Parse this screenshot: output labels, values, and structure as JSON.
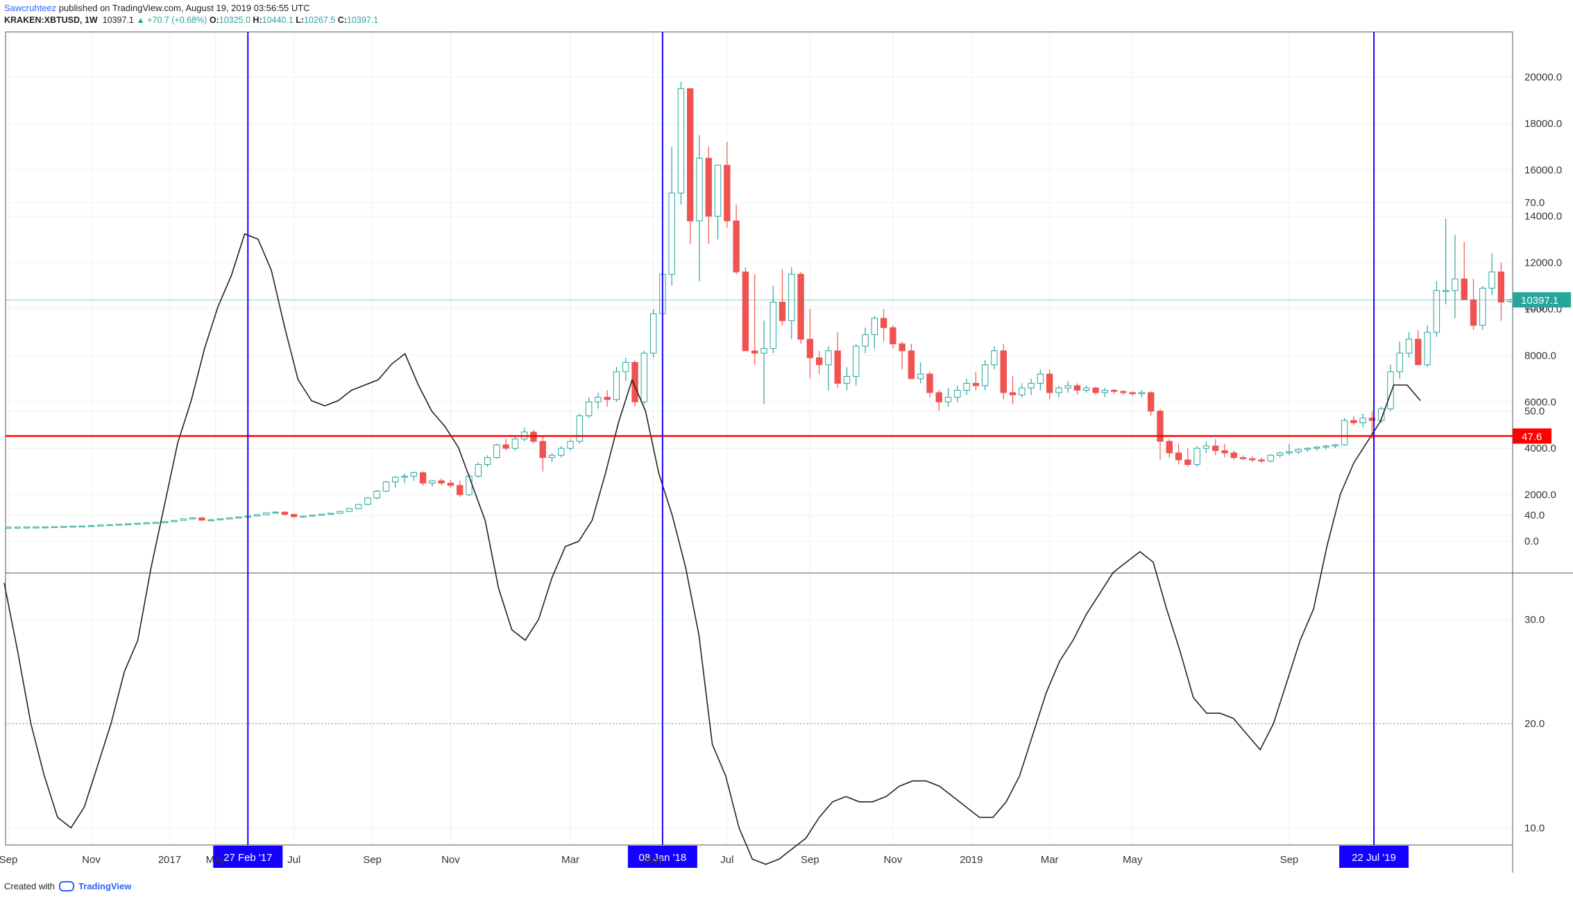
{
  "header": {
    "author": "Sawcruhteez",
    "publish_text": "published on TradingView.com, August 19, 2019 03:56:55 UTC",
    "symbol": "KRAKEN:XBTUSD, 1W",
    "last": "10397.1",
    "change": "▲ +70.7 (+0.68%)",
    "o_label": "O:",
    "o_value": "10325.0",
    "h_label": "H:",
    "h_value": "10440.1",
    "l_label": "L:",
    "l_value": "10267.5",
    "c_label": "C:",
    "c_value": "10397.1"
  },
  "footer": {
    "created_with": "Created with",
    "brand": "TradingView"
  },
  "colors": {
    "up": "#26a69a",
    "up_fill": "#ffffff",
    "down": "#ef5350",
    "marker": "#1400ff",
    "level": "#ff0000",
    "price_line": "#26a69a"
  },
  "chart_data": [
    {
      "type": "candlestick",
      "y_ticks": [
        "20000.0",
        "18000.0",
        "16000.0",
        "14000.0",
        "12000.0",
        "10000.0",
        "8000.0",
        "6000.0",
        "4000.0",
        "2000.0",
        "0.0"
      ],
      "last_price_label": "10397.1",
      "x_ticks": [
        "Sep",
        "Nov",
        "2017",
        "May",
        "Jul",
        "Sep",
        "Nov",
        "Mar",
        "May",
        "Jul",
        "Sep",
        "Nov",
        "2019",
        "Mar",
        "May",
        "Sep"
      ],
      "marker_labels": [
        "27 Feb '17",
        "08 Jan '18",
        "22 Jul '19"
      ],
      "ylim": [
        0,
        21000
      ],
      "candles_ohlc": [
        [
          600,
          605,
          590,
          600
        ],
        [
          600,
          606,
          592,
          604
        ],
        [
          604,
          612,
          598,
          608
        ],
        [
          608,
          615,
          602,
          610
        ],
        [
          610,
          620,
          605,
          615
        ],
        [
          615,
          630,
          610,
          625
        ],
        [
          625,
          640,
          620,
          635
        ],
        [
          635,
          650,
          628,
          645
        ],
        [
          645,
          660,
          640,
          655
        ],
        [
          655,
          680,
          650,
          670
        ],
        [
          670,
          700,
          660,
          695
        ],
        [
          695,
          720,
          685,
          710
        ],
        [
          710,
          740,
          700,
          730
        ],
        [
          730,
          760,
          720,
          750
        ],
        [
          750,
          780,
          740,
          770
        ],
        [
          770,
          800,
          760,
          790
        ],
        [
          790,
          820,
          780,
          810
        ],
        [
          810,
          850,
          800,
          840
        ],
        [
          840,
          900,
          830,
          890
        ],
        [
          890,
          980,
          880,
          960
        ],
        [
          960,
          1020,
          940,
          1000
        ],
        [
          1000,
          1050,
          950,
          900
        ],
        [
          900,
          960,
          880,
          920
        ],
        [
          920,
          980,
          900,
          960
        ],
        [
          960,
          1020,
          940,
          1000
        ],
        [
          1000,
          1060,
          980,
          1040
        ],
        [
          1040,
          1100,
          1020,
          1080
        ],
        [
          1080,
          1160,
          1060,
          1140
        ],
        [
          1140,
          1240,
          1120,
          1220
        ],
        [
          1220,
          1290,
          1180,
          1250
        ],
        [
          1250,
          1280,
          1100,
          1150
        ],
        [
          1150,
          1180,
          1000,
          1050
        ],
        [
          1050,
          1100,
          1000,
          1080
        ],
        [
          1080,
          1140,
          1060,
          1120
        ],
        [
          1120,
          1180,
          1100,
          1160
        ],
        [
          1160,
          1220,
          1140,
          1200
        ],
        [
          1200,
          1300,
          1180,
          1280
        ],
        [
          1280,
          1420,
          1260,
          1400
        ],
        [
          1400,
          1600,
          1380,
          1580
        ],
        [
          1580,
          1900,
          1550,
          1860
        ],
        [
          1860,
          2200,
          1800,
          2150
        ],
        [
          2150,
          2600,
          2100,
          2550
        ],
        [
          2550,
          2800,
          2300,
          2750
        ],
        [
          2750,
          2900,
          2500,
          2800
        ],
        [
          2800,
          3000,
          2600,
          2950
        ],
        [
          2950,
          3000,
          2400,
          2500
        ],
        [
          2500,
          2650,
          2350,
          2600
        ],
        [
          2600,
          2700,
          2400,
          2500
        ],
        [
          2500,
          2650,
          2300,
          2400
        ],
        [
          2400,
          2600,
          1900,
          2000
        ],
        [
          2000,
          2900,
          1950,
          2800
        ],
        [
          2800,
          3400,
          2750,
          3300
        ],
        [
          3300,
          3700,
          3200,
          3600
        ],
        [
          3600,
          4200,
          3550,
          4150
        ],
        [
          4150,
          4400,
          3900,
          4000
        ],
        [
          4000,
          4500,
          3900,
          4400
        ],
        [
          4400,
          4900,
          4300,
          4700
        ],
        [
          4700,
          4800,
          4200,
          4300
        ],
        [
          4300,
          4500,
          3000,
          3600
        ],
        [
          3600,
          3800,
          3400,
          3700
        ],
        [
          3700,
          4100,
          3600,
          4000
        ],
        [
          4000,
          4400,
          3900,
          4300
        ],
        [
          4300,
          5500,
          4200,
          5400
        ],
        [
          5400,
          6200,
          5300,
          6000
        ],
        [
          6000,
          6400,
          5700,
          6200
        ],
        [
          6200,
          6500,
          5800,
          6100
        ],
        [
          6100,
          7500,
          6000,
          7300
        ],
        [
          7300,
          7900,
          6900,
          7700
        ],
        [
          7700,
          7800,
          5800,
          6000
        ],
        [
          6000,
          8200,
          5900,
          8100
        ],
        [
          8100,
          10000,
          7900,
          9800
        ],
        [
          9800,
          11800,
          9500,
          11500
        ],
        [
          11500,
          17000,
          11000,
          15000
        ],
        [
          15000,
          19800,
          14500,
          19500
        ],
        [
          19500,
          19000,
          12800,
          13800
        ],
        [
          13800,
          17500,
          11200,
          16500
        ],
        [
          16500,
          17000,
          12800,
          14000
        ],
        [
          14000,
          16200,
          13000,
          16200
        ],
        [
          16200,
          17200,
          13500,
          13800
        ],
        [
          13800,
          14500,
          11500,
          11600
        ],
        [
          11600,
          11800,
          9000,
          8200
        ],
        [
          8200,
          11500,
          7600,
          8100
        ],
        [
          8100,
          9500,
          5900,
          8300
        ],
        [
          8300,
          11000,
          8100,
          10300
        ],
        [
          10300,
          11700,
          9300,
          9500
        ],
        [
          9500,
          11800,
          8700,
          11500
        ],
        [
          11500,
          11600,
          8500,
          8700
        ],
        [
          8700,
          10000,
          7000,
          7900
        ],
        [
          7900,
          8200,
          7200,
          7600
        ],
        [
          7600,
          8400,
          6500,
          8200
        ],
        [
          8200,
          9000,
          6600,
          6800
        ],
        [
          6800,
          7500,
          6500,
          7100
        ],
        [
          7100,
          8500,
          6700,
          8400
        ],
        [
          8400,
          9200,
          8100,
          8900
        ],
        [
          8900,
          9700,
          8300,
          9600
        ],
        [
          9600,
          10000,
          8600,
          9200
        ],
        [
          9200,
          9300,
          8300,
          8500
        ],
        [
          8500,
          8600,
          7400,
          8200
        ],
        [
          8200,
          8500,
          7000,
          7000
        ],
        [
          7000,
          7700,
          6800,
          7200
        ],
        [
          7200,
          7300,
          6200,
          6400
        ],
        [
          6400,
          6500,
          5600,
          6000
        ],
        [
          6000,
          6600,
          5800,
          6200
        ],
        [
          6200,
          6700,
          6000,
          6500
        ],
        [
          6500,
          7000,
          6300,
          6800
        ],
        [
          6800,
          7300,
          6500,
          6700
        ],
        [
          6700,
          7800,
          6500,
          7600
        ],
        [
          7600,
          8400,
          7400,
          8200
        ],
        [
          8200,
          8500,
          6100,
          6400
        ],
        [
          6400,
          7100,
          5900,
          6300
        ],
        [
          6300,
          6800,
          6200,
          6600
        ],
        [
          6600,
          7000,
          6300,
          6800
        ],
        [
          6800,
          7400,
          6500,
          7200
        ],
        [
          7200,
          7400,
          6100,
          6400
        ],
        [
          6400,
          6700,
          6200,
          6600
        ],
        [
          6600,
          6900,
          6400,
          6700
        ],
        [
          6700,
          6800,
          6300,
          6500
        ],
        [
          6500,
          6700,
          6400,
          6600
        ],
        [
          6600,
          6650,
          6300,
          6400
        ],
        [
          6400,
          6600,
          6200,
          6500
        ],
        [
          6500,
          6550,
          6350,
          6450
        ],
        [
          6450,
          6500,
          6300,
          6400
        ],
        [
          6400,
          6450,
          6250,
          6350
        ],
        [
          6350,
          6500,
          6200,
          6400
        ],
        [
          6400,
          6450,
          5400,
          5600
        ],
        [
          5600,
          5700,
          3500,
          4300
        ],
        [
          4300,
          4400,
          3600,
          3800
        ],
        [
          3800,
          4200,
          3300,
          3500
        ],
        [
          3500,
          4000,
          3200,
          3300
        ],
        [
          3300,
          4100,
          3200,
          4000
        ],
        [
          4000,
          4300,
          3800,
          4100
        ],
        [
          4100,
          4400,
          3700,
          3900
        ],
        [
          3900,
          4200,
          3600,
          3800
        ],
        [
          3800,
          3900,
          3500,
          3600
        ],
        [
          3600,
          3700,
          3500,
          3550
        ],
        [
          3550,
          3650,
          3400,
          3500
        ],
        [
          3500,
          3600,
          3350,
          3450
        ],
        [
          3450,
          3750,
          3400,
          3700
        ],
        [
          3700,
          3850,
          3600,
          3800
        ],
        [
          3800,
          4200,
          3700,
          3850
        ],
        [
          3850,
          4000,
          3750,
          3950
        ],
        [
          3950,
          4050,
          3850,
          4000
        ],
        [
          4000,
          4100,
          3900,
          4050
        ],
        [
          4050,
          4150,
          3950,
          4100
        ],
        [
          4100,
          4200,
          4000,
          4150
        ],
        [
          4150,
          5300,
          4100,
          5200
        ],
        [
          5200,
          5400,
          5000,
          5100
        ],
        [
          5100,
          5500,
          4900,
          5300
        ],
        [
          5300,
          5600,
          4400,
          5200
        ],
        [
          5200,
          5800,
          5100,
          5700
        ],
        [
          5700,
          7600,
          5600,
          7300
        ],
        [
          7300,
          8600,
          7000,
          8100
        ],
        [
          8100,
          9000,
          7900,
          8700
        ],
        [
          8700,
          9100,
          7600,
          7600
        ],
        [
          7600,
          9300,
          7500,
          9000
        ],
        [
          9000,
          11200,
          8800,
          10800
        ],
        [
          10800,
          13900,
          10200,
          10800
        ],
        [
          10800,
          13200,
          9600,
          11300
        ],
        [
          11300,
          12900,
          10400,
          10400
        ],
        [
          10400,
          11300,
          9100,
          9300
        ],
        [
          9300,
          11000,
          9100,
          10900
        ],
        [
          10900,
          12400,
          10600,
          11600
        ],
        [
          11600,
          12000,
          9500,
          10300
        ],
        [
          10325,
          10440,
          10267,
          10397
        ]
      ]
    },
    {
      "type": "line",
      "y_ticks": [
        "70.0",
        "60.0",
        "50.0",
        "40.0",
        "30.0",
        "20.0",
        "10.0"
      ],
      "ylim": [
        0,
        75
      ],
      "current_label": "47.6",
      "level": 47.6,
      "dotted_level": 20,
      "values": [
        33.5,
        27,
        20,
        15,
        11,
        10,
        12,
        16,
        20,
        25,
        28,
        35,
        41,
        47,
        51,
        56,
        60,
        63,
        67,
        66.5,
        63.5,
        58,
        53,
        51,
        50.5,
        51,
        52,
        52.5,
        53,
        54.5,
        55.5,
        52.5,
        50,
        48.5,
        46.5,
        43,
        39.5,
        33,
        29,
        28,
        30,
        34,
        37,
        37.5,
        39.5,
        44,
        49,
        53,
        50,
        44,
        40,
        35,
        28.5,
        18,
        15,
        10,
        7,
        6.5,
        7,
        8,
        9,
        11,
        12.5,
        13,
        12.5,
        12.5,
        13,
        14,
        14.5,
        14.5,
        14,
        13,
        12,
        11,
        11,
        12.5,
        15,
        19,
        23,
        26,
        28,
        30.5,
        32.5,
        34.5,
        35.5,
        36.5,
        35.5,
        31,
        27,
        22.5,
        21,
        21,
        20.5,
        19,
        17.5,
        20,
        24,
        28,
        31,
        37,
        42,
        45,
        47,
        49,
        52.5,
        52.5,
        51
      ]
    }
  ]
}
